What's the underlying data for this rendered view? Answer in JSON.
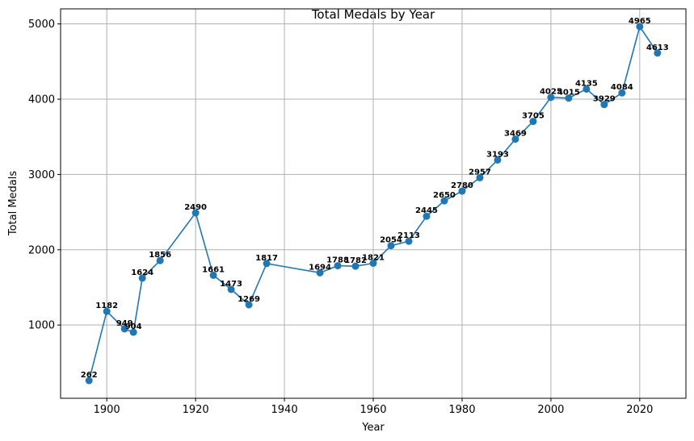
{
  "chart_data": {
    "type": "line",
    "title": "Total Medals by Year",
    "xlabel": "Year",
    "ylabel": "Total Medals",
    "xlim": [
      1889.6,
      2030.4
    ],
    "ylim": [
      27,
      5200
    ],
    "xticks": [
      1900,
      1920,
      1940,
      1960,
      1980,
      2000,
      2020
    ],
    "yticks": [
      1000,
      2000,
      3000,
      4000,
      5000
    ],
    "grid": true,
    "color": "#1f77b4",
    "marker": "circle",
    "series": [
      {
        "x": [
          1896,
          1900,
          1904,
          1906,
          1908,
          1912,
          1920,
          1924,
          1928,
          1932,
          1936,
          1948,
          1952,
          1956,
          1960,
          1964,
          1968,
          1972,
          1976,
          1980,
          1984,
          1988,
          1992,
          1996,
          2000,
          2004,
          2008,
          2012,
          2016,
          2020,
          2024
        ],
        "y": [
          262,
          1182,
          949,
          904,
          1624,
          1856,
          2490,
          1661,
          1473,
          1269,
          1817,
          1694,
          1788,
          1782,
          1821,
          2054,
          2113,
          2445,
          2650,
          2780,
          2957,
          3193,
          3469,
          3705,
          4025,
          4015,
          4135,
          3929,
          4084,
          4965,
          4613
        ],
        "labels": [
          "262",
          "1182",
          "949",
          "904",
          "1624",
          "1856",
          "2490",
          "1661",
          "1473",
          "1269",
          "1817",
          "1694",
          "1788",
          "1782",
          "1821",
          "2054",
          "2113",
          "2445",
          "2650",
          "2780",
          "2957",
          "3193",
          "3469",
          "3705",
          "4025",
          "4015",
          "4135",
          "3929",
          "4084",
          "4965",
          "4613"
        ]
      }
    ]
  }
}
